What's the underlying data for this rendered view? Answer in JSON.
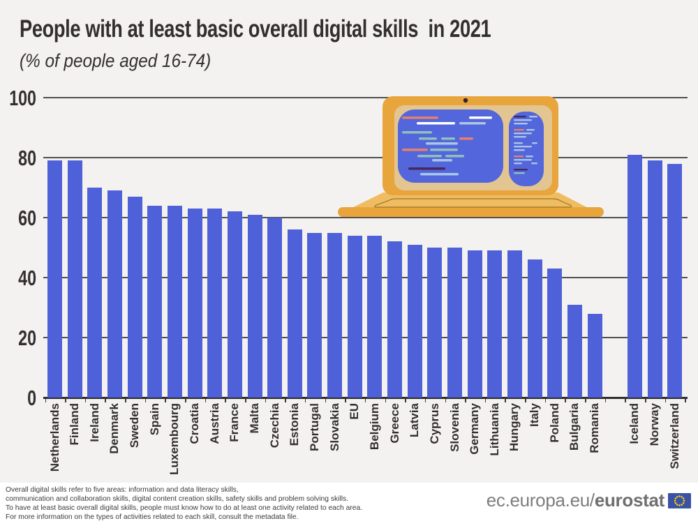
{
  "header": {
    "title": "People with at least basic overall digital skills  in 2021",
    "subtitle": "(% of people aged 16-74)"
  },
  "chart_data": {
    "type": "bar",
    "title": "People with at least basic overall digital skills in 2021",
    "subtitle": "(% of people aged 16-74)",
    "unit": "%",
    "categories": [
      "Netherlands",
      "Finland",
      "Ireland",
      "Denmark",
      "Sweden",
      "Spain",
      "Luxembourg",
      "Croatia",
      "Austria",
      "France",
      "Malta",
      "Czechia",
      "Estonia",
      "Portugal",
      "Slovakia",
      "EU",
      "Belgium",
      "Greece",
      "Latvia",
      "Cyprus",
      "Slovenia",
      "Germany",
      "Lithuania",
      "Hungary",
      "Italy",
      "Poland",
      "Bulgaria",
      "Romania",
      "Iceland",
      "Norway",
      "Switzerland"
    ],
    "values": [
      79,
      79,
      70,
      69,
      67,
      64,
      64,
      63,
      63,
      62,
      61,
      60,
      56,
      55,
      55,
      54,
      54,
      52,
      51,
      50,
      50,
      49,
      49,
      49,
      46,
      43,
      31,
      28,
      81,
      79,
      78
    ],
    "separator_after": "Romania",
    "ylim": [
      0,
      100
    ],
    "yticks": [
      0,
      20,
      40,
      60,
      80,
      100
    ],
    "grid": true,
    "legend": false,
    "bar_color": "#4E61D8"
  },
  "footer": {
    "notes": [
      "Overall digital skills refer to five areas: information and data literacy skills,",
      "communication and collaboration skills, digital content creation skills, safety skills and problem solving skills.",
      "To have at least basic overall digital skills, people must know how to do at least one activity related to each area.",
      "For more information on the types of activities related to each skill, consult the metadata file."
    ],
    "brand_url_prefix": "ec.europa.eu/",
    "brand_name": "eurostat"
  },
  "colors": {
    "background": "#F4F2F0",
    "footer_bg": "#FFFFFF",
    "bar": "#4E61D8",
    "text_dark": "#332F30",
    "grid": "#4F4F4F",
    "laptop_body": "#E8A53C",
    "laptop_base": "#EFBC62",
    "laptop_bezel": "#E3C591",
    "screen_blue": "#5366DB",
    "code_salmon": "#E87E6D",
    "code_white": "#FFFFFF",
    "code_lightblue": "#A9C6E8",
    "code_teal": "#8FC0BC",
    "code_purple": "#46285C",
    "eu_flag_blue": "#3B51A3",
    "eu_star_yellow": "#F7D117",
    "brand_gray": "#7D7D7D"
  }
}
